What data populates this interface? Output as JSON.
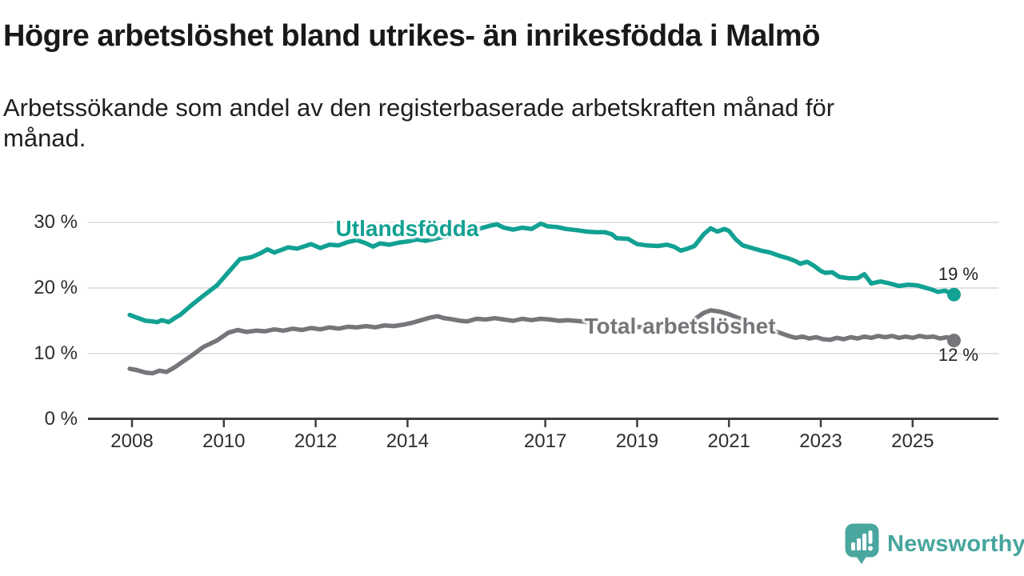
{
  "header": {
    "title": "Högre arbetslöshet bland utrikes- än inrikesfödda i Malmö",
    "subtitle_lines": [
      "Arbetssökande som andel av den registerbaserade arbetskraften månad för",
      "månad."
    ]
  },
  "chart_data": {
    "type": "line",
    "title": "Högre arbetslöshet bland utrikes- än inrikesfödda i Malmö",
    "subtitle": "Arbetssökande som andel av den registerbaserade arbetskraften månad för månad.",
    "unit": "%",
    "grid": "horizontal-only",
    "legend_position": "inline-labels-on-lines",
    "x_axis": {
      "tick_years": [
        2008,
        2010,
        2012,
        2014,
        2017,
        2019,
        2021,
        2023,
        2025
      ],
      "range": [
        2007.6,
        2026.9
      ]
    },
    "y_axis": {
      "tick_values": [
        0,
        10,
        20,
        30
      ],
      "tick_labels": [
        "0 %",
        "10 %",
        "20 %",
        "30 %"
      ],
      "range": [
        0,
        30
      ]
    },
    "series": [
      {
        "id": "utlandsfodda",
        "name": "Utlandsfödda",
        "color": "#12a193",
        "end_label": "19 %",
        "end_value": 19,
        "points": [
          [
            2007.95,
            15.9
          ],
          [
            2008.1,
            15.5
          ],
          [
            2008.3,
            15.0
          ],
          [
            2008.45,
            14.9
          ],
          [
            2008.55,
            14.8
          ],
          [
            2008.65,
            15.1
          ],
          [
            2008.8,
            14.8
          ],
          [
            2008.95,
            15.5
          ],
          [
            2009.05,
            15.9
          ],
          [
            2009.3,
            17.4
          ],
          [
            2009.55,
            18.8
          ],
          [
            2009.85,
            20.4
          ],
          [
            2010.1,
            22.4
          ],
          [
            2010.35,
            24.4
          ],
          [
            2010.6,
            24.7
          ],
          [
            2010.8,
            25.3
          ],
          [
            2010.95,
            25.9
          ],
          [
            2011.1,
            25.4
          ],
          [
            2011.4,
            26.2
          ],
          [
            2011.6,
            26.0
          ],
          [
            2011.9,
            26.7
          ],
          [
            2012.1,
            26.1
          ],
          [
            2012.3,
            26.6
          ],
          [
            2012.5,
            26.5
          ],
          [
            2012.7,
            27.0
          ],
          [
            2012.9,
            27.3
          ],
          [
            2013.1,
            26.8
          ],
          [
            2013.25,
            26.3
          ],
          [
            2013.4,
            26.8
          ],
          [
            2013.6,
            26.6
          ],
          [
            2013.8,
            26.9
          ],
          [
            2014.0,
            27.1
          ],
          [
            2014.2,
            27.4
          ],
          [
            2014.4,
            27.2
          ],
          [
            2014.6,
            27.5
          ],
          [
            2014.8,
            27.8
          ],
          [
            2015.0,
            28.1
          ],
          [
            2015.2,
            28.3
          ],
          [
            2015.4,
            28.6
          ],
          [
            2015.6,
            29.1
          ],
          [
            2015.8,
            29.5
          ],
          [
            2015.95,
            29.7
          ],
          [
            2016.1,
            29.2
          ],
          [
            2016.3,
            28.9
          ],
          [
            2016.5,
            29.2
          ],
          [
            2016.7,
            29.0
          ],
          [
            2016.9,
            29.8
          ],
          [
            2017.05,
            29.4
          ],
          [
            2017.25,
            29.3
          ],
          [
            2017.45,
            29.0
          ],
          [
            2017.7,
            28.8
          ],
          [
            2017.9,
            28.6
          ],
          [
            2018.1,
            28.5
          ],
          [
            2018.3,
            28.5
          ],
          [
            2018.45,
            28.2
          ],
          [
            2018.55,
            27.6
          ],
          [
            2018.8,
            27.5
          ],
          [
            2019.0,
            26.7
          ],
          [
            2019.2,
            26.5
          ],
          [
            2019.45,
            26.4
          ],
          [
            2019.65,
            26.6
          ],
          [
            2019.8,
            26.3
          ],
          [
            2019.95,
            25.7
          ],
          [
            2020.1,
            26.0
          ],
          [
            2020.25,
            26.4
          ],
          [
            2020.45,
            28.2
          ],
          [
            2020.6,
            29.1
          ],
          [
            2020.75,
            28.6
          ],
          [
            2020.9,
            29.0
          ],
          [
            2021.0,
            28.7
          ],
          [
            2021.15,
            27.4
          ],
          [
            2021.3,
            26.5
          ],
          [
            2021.5,
            26.1
          ],
          [
            2021.7,
            25.7
          ],
          [
            2021.9,
            25.4
          ],
          [
            2022.1,
            24.9
          ],
          [
            2022.3,
            24.5
          ],
          [
            2022.45,
            24.1
          ],
          [
            2022.55,
            23.7
          ],
          [
            2022.7,
            24.0
          ],
          [
            2022.85,
            23.4
          ],
          [
            2023.0,
            22.6
          ],
          [
            2023.1,
            22.3
          ],
          [
            2023.25,
            22.4
          ],
          [
            2023.4,
            21.7
          ],
          [
            2023.6,
            21.5
          ],
          [
            2023.8,
            21.5
          ],
          [
            2023.95,
            22.1
          ],
          [
            2024.1,
            20.7
          ],
          [
            2024.3,
            21.0
          ],
          [
            2024.5,
            20.7
          ],
          [
            2024.7,
            20.3
          ],
          [
            2024.9,
            20.5
          ],
          [
            2025.1,
            20.4
          ],
          [
            2025.25,
            20.1
          ],
          [
            2025.4,
            19.8
          ],
          [
            2025.55,
            19.4
          ],
          [
            2025.7,
            19.6
          ],
          [
            2025.9,
            19.0
          ]
        ]
      },
      {
        "id": "total",
        "name": "Total arbetslöshet",
        "color": "#75767a",
        "end_label": "12 %",
        "end_value": 12,
        "points": [
          [
            2007.95,
            7.7
          ],
          [
            2008.1,
            7.5
          ],
          [
            2008.3,
            7.1
          ],
          [
            2008.45,
            7.0
          ],
          [
            2008.6,
            7.4
          ],
          [
            2008.75,
            7.2
          ],
          [
            2008.95,
            8.0
          ],
          [
            2009.05,
            8.5
          ],
          [
            2009.3,
            9.7
          ],
          [
            2009.55,
            11.0
          ],
          [
            2009.85,
            12.0
          ],
          [
            2010.1,
            13.2
          ],
          [
            2010.3,
            13.6
          ],
          [
            2010.5,
            13.3
          ],
          [
            2010.7,
            13.5
          ],
          [
            2010.9,
            13.4
          ],
          [
            2011.1,
            13.7
          ],
          [
            2011.3,
            13.5
          ],
          [
            2011.5,
            13.8
          ],
          [
            2011.7,
            13.6
          ],
          [
            2011.9,
            13.9
          ],
          [
            2012.1,
            13.7
          ],
          [
            2012.3,
            14.0
          ],
          [
            2012.5,
            13.8
          ],
          [
            2012.7,
            14.1
          ],
          [
            2012.9,
            14.0
          ],
          [
            2013.1,
            14.2
          ],
          [
            2013.3,
            14.0
          ],
          [
            2013.5,
            14.3
          ],
          [
            2013.7,
            14.2
          ],
          [
            2013.9,
            14.4
          ],
          [
            2014.1,
            14.7
          ],
          [
            2014.3,
            15.1
          ],
          [
            2014.5,
            15.5
          ],
          [
            2014.65,
            15.7
          ],
          [
            2014.8,
            15.4
          ],
          [
            2015.0,
            15.2
          ],
          [
            2015.15,
            15.0
          ],
          [
            2015.3,
            14.9
          ],
          [
            2015.5,
            15.3
          ],
          [
            2015.7,
            15.2
          ],
          [
            2015.9,
            15.4
          ],
          [
            2016.1,
            15.2
          ],
          [
            2016.3,
            15.0
          ],
          [
            2016.5,
            15.3
          ],
          [
            2016.7,
            15.1
          ],
          [
            2016.9,
            15.3
          ],
          [
            2017.1,
            15.2
          ],
          [
            2017.3,
            15.0
          ],
          [
            2017.5,
            15.1
          ],
          [
            2017.8,
            14.9
          ],
          [
            2018.0,
            14.7
          ],
          [
            2018.3,
            14.5
          ],
          [
            2018.6,
            14.3
          ],
          [
            2018.9,
            14.1
          ],
          [
            2019.2,
            14.0
          ],
          [
            2019.5,
            13.9
          ],
          [
            2019.8,
            13.7
          ],
          [
            2020.0,
            14.0
          ],
          [
            2020.2,
            15.0
          ],
          [
            2020.45,
            16.2
          ],
          [
            2020.6,
            16.6
          ],
          [
            2020.8,
            16.4
          ],
          [
            2021.0,
            16.0
          ],
          [
            2021.3,
            15.2
          ],
          [
            2021.6,
            14.4
          ],
          [
            2021.9,
            13.7
          ],
          [
            2022.1,
            13.2
          ],
          [
            2022.3,
            12.7
          ],
          [
            2022.45,
            12.4
          ],
          [
            2022.6,
            12.6
          ],
          [
            2022.75,
            12.3
          ],
          [
            2022.9,
            12.5
          ],
          [
            2023.05,
            12.2
          ],
          [
            2023.2,
            12.1
          ],
          [
            2023.35,
            12.4
          ],
          [
            2023.5,
            12.2
          ],
          [
            2023.65,
            12.5
          ],
          [
            2023.8,
            12.3
          ],
          [
            2023.95,
            12.6
          ],
          [
            2024.1,
            12.4
          ],
          [
            2024.25,
            12.7
          ],
          [
            2024.4,
            12.5
          ],
          [
            2024.55,
            12.7
          ],
          [
            2024.7,
            12.4
          ],
          [
            2024.85,
            12.6
          ],
          [
            2025.0,
            12.4
          ],
          [
            2025.15,
            12.7
          ],
          [
            2025.3,
            12.5
          ],
          [
            2025.45,
            12.6
          ],
          [
            2025.6,
            12.3
          ],
          [
            2025.75,
            12.5
          ],
          [
            2025.9,
            12.0
          ]
        ]
      }
    ],
    "style": {
      "grid_color": "#d8d8d8",
      "axis_color": "#3f3f3f",
      "axis_text_color": "#2d2d2d"
    }
  },
  "branding": {
    "name": "Newsworthy",
    "color": "#46a59c",
    "icon": "bar-chart-speech-bubble-icon"
  }
}
